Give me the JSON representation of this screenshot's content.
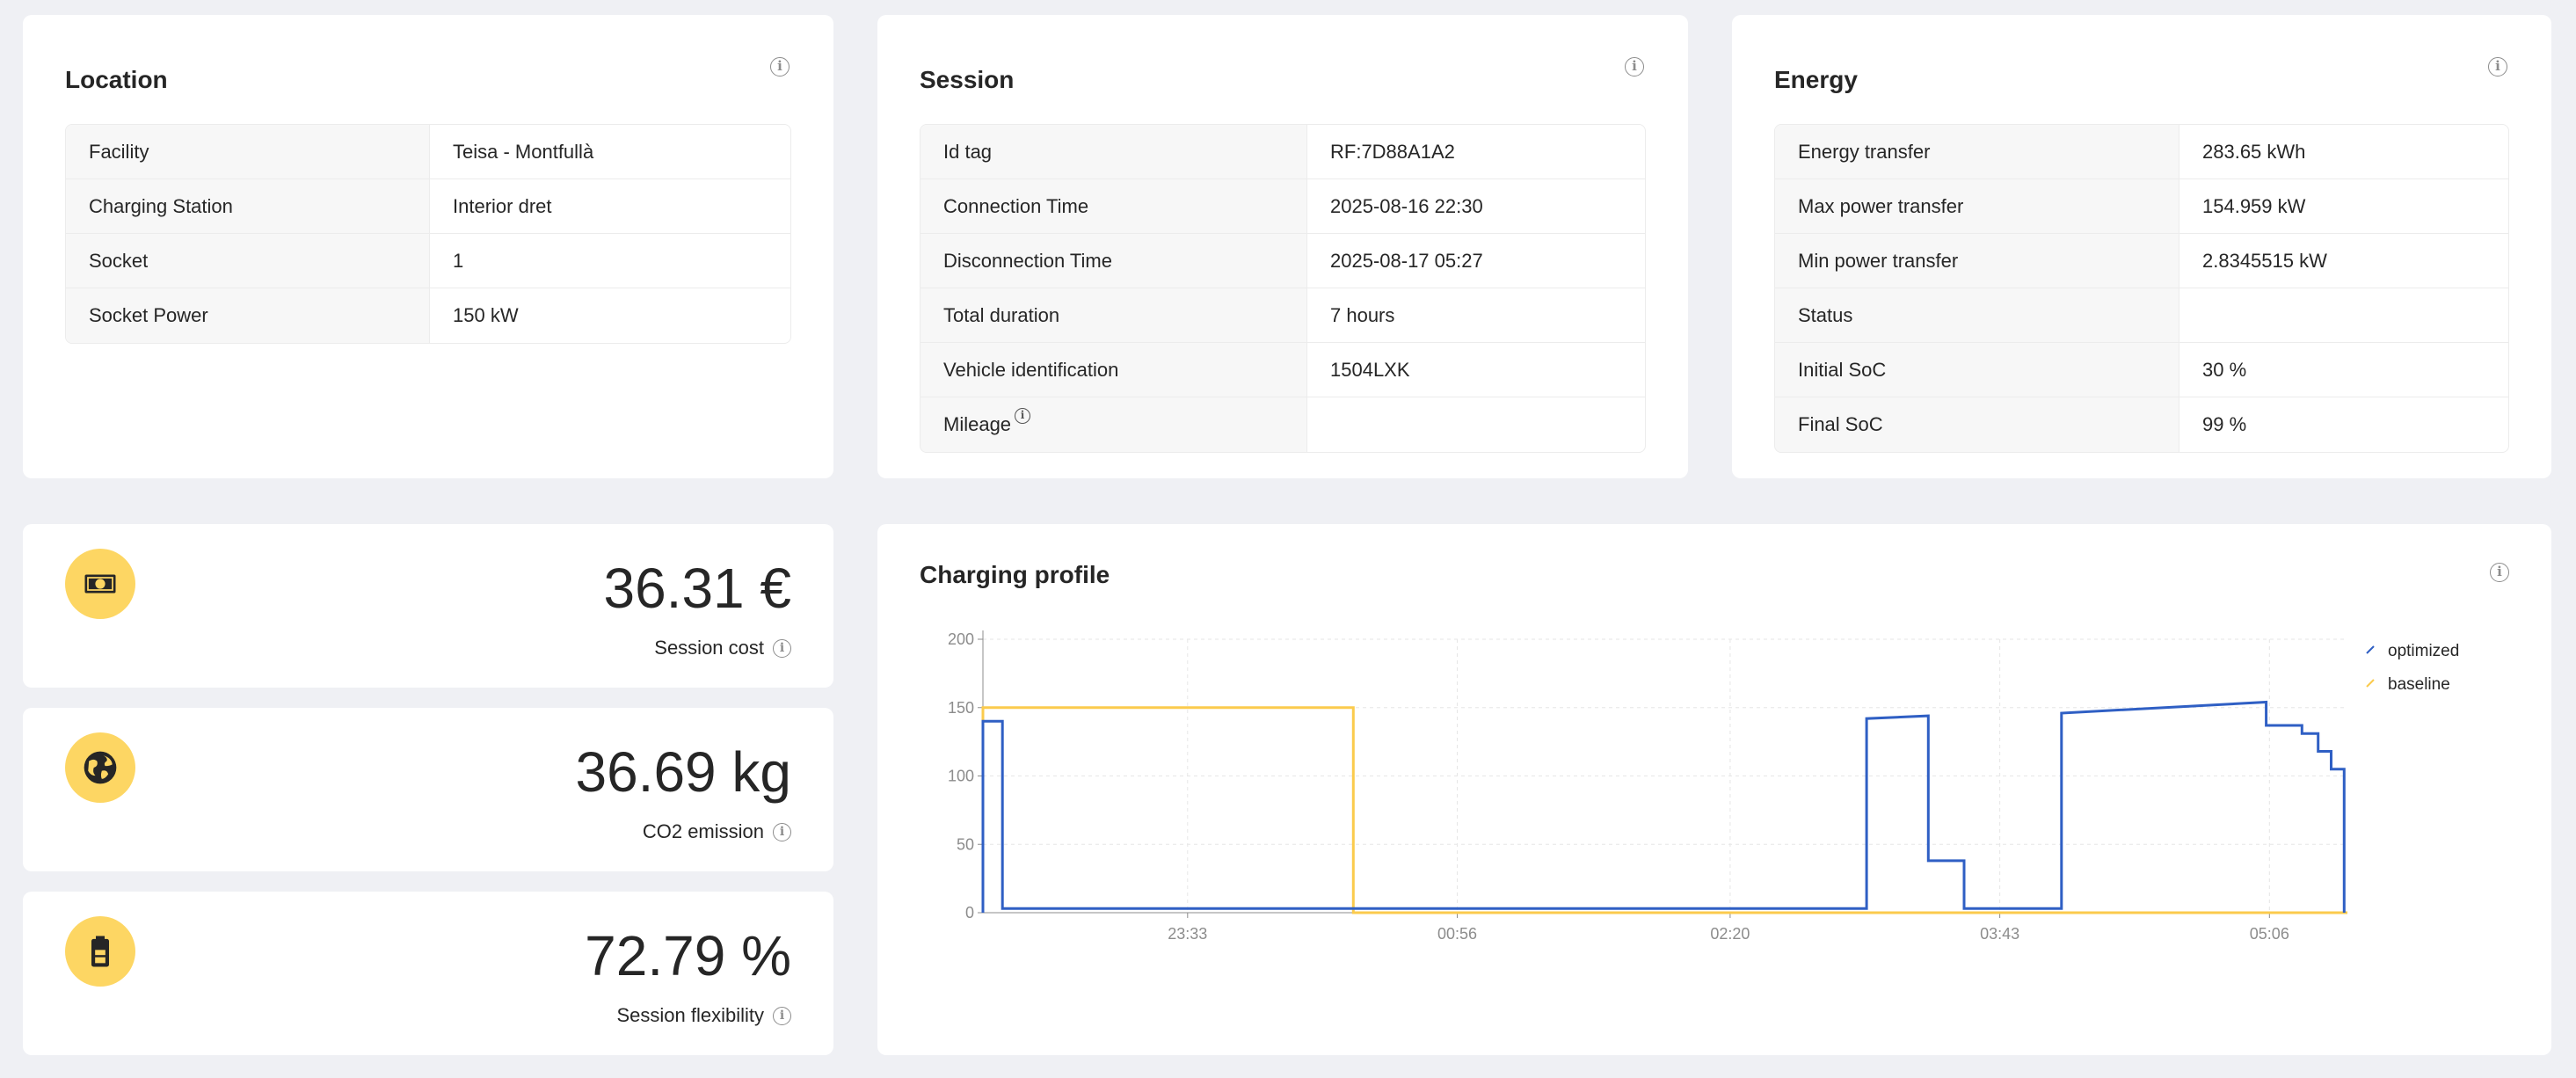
{
  "location": {
    "title": "Location",
    "rows": [
      {
        "key": "Facility",
        "value": "Teisa - Montfullà"
      },
      {
        "key": "Charging Station",
        "value": "Interior dret"
      },
      {
        "key": "Socket",
        "value": "1"
      },
      {
        "key": "Socket Power",
        "value": "150 kW"
      }
    ]
  },
  "session": {
    "title": "Session",
    "rows": [
      {
        "key": "Id tag",
        "value": "RF:7D88A1A2"
      },
      {
        "key": "Connection Time",
        "value": "2025-08-16 22:30"
      },
      {
        "key": "Disconnection Time",
        "value": "2025-08-17 05:27"
      },
      {
        "key": "Total duration",
        "value": "7 hours"
      },
      {
        "key": "Vehicle identification",
        "value": "1504LXK"
      },
      {
        "key": "Mileage",
        "value": ""
      }
    ]
  },
  "energy": {
    "title": "Energy",
    "rows": [
      {
        "key": "Energy transfer",
        "value": "283.65 kWh"
      },
      {
        "key": "Max power transfer",
        "value": "154.959 kW"
      },
      {
        "key": "Min power transfer",
        "value": "2.8345515 kW"
      },
      {
        "key": "Status",
        "value": ""
      },
      {
        "key": "Initial SoC",
        "value": "30 %"
      },
      {
        "key": "Final SoC",
        "value": "99 %"
      }
    ]
  },
  "stats": {
    "cost": {
      "value": "36.31 €",
      "label": "Session cost",
      "icon": "money-icon"
    },
    "co2": {
      "value": "36.69 kg",
      "label": "CO2 emission",
      "icon": "globe-icon"
    },
    "flex": {
      "value": "72.79 %",
      "label": "Session flexibility",
      "icon": "battery-icon"
    }
  },
  "colors": {
    "accent_yellow": "#fdd663",
    "optimized": "#2f5fc4",
    "baseline": "#fbcb4d"
  },
  "chart_data": {
    "type": "line",
    "title": "Charging profile",
    "x_tick_labels": [
      "23:33",
      "00:56",
      "02:20",
      "03:43",
      "05:06"
    ],
    "x_tick_minutes": [
      1413,
      1496,
      1580,
      1663,
      1746
    ],
    "y_ticks": [
      0,
      50,
      100,
      150,
      200
    ],
    "ylim": [
      0,
      200
    ],
    "xlim_minutes": [
      1350,
      1770
    ],
    "grid": true,
    "legend_position": "top-right",
    "series": [
      {
        "name": "optimized",
        "color": "#2f5fc4",
        "step": true,
        "points": [
          [
            1350,
            0
          ],
          [
            1350,
            140
          ],
          [
            1356,
            140
          ],
          [
            1356,
            3
          ],
          [
            1622,
            3
          ],
          [
            1622,
            142
          ],
          [
            1641,
            144
          ],
          [
            1641,
            38
          ],
          [
            1652,
            38
          ],
          [
            1652,
            3
          ],
          [
            1682,
            3
          ],
          [
            1682,
            146
          ],
          [
            1745,
            154
          ],
          [
            1745,
            137
          ],
          [
            1756,
            137
          ],
          [
            1756,
            131
          ],
          [
            1761,
            131
          ],
          [
            1761,
            118
          ],
          [
            1765,
            118
          ],
          [
            1765,
            105
          ],
          [
            1769,
            105
          ],
          [
            1769,
            0
          ]
        ]
      },
      {
        "name": "baseline",
        "color": "#fbcb4d",
        "step": true,
        "points": [
          [
            1350,
            0
          ],
          [
            1350,
            150
          ],
          [
            1464,
            150
          ],
          [
            1464,
            0
          ],
          [
            1770,
            0
          ]
        ]
      }
    ]
  }
}
